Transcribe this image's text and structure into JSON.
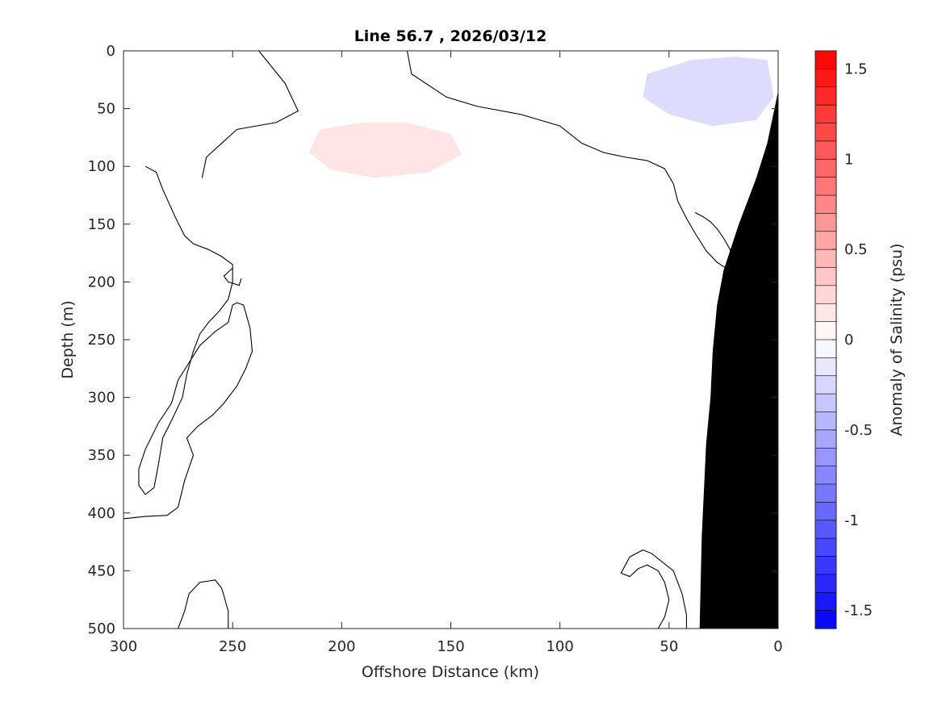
{
  "chart_data": {
    "type": "heatmap",
    "title": "Line 56.7 , 2026/03/12",
    "xlabel": "Offshore Distance (km)",
    "ylabel": "Depth (m)",
    "xlim": [
      300,
      0
    ],
    "ylim": [
      0,
      500
    ],
    "x_reversed": true,
    "y_reversed": true,
    "xticks": [
      300,
      250,
      200,
      150,
      100,
      50,
      0
    ],
    "yticks": [
      0,
      50,
      100,
      150,
      200,
      250,
      300,
      350,
      400,
      450,
      500
    ],
    "colorbar": {
      "label": "Anomaly of Salinity (psu)",
      "range": [
        -1.6,
        1.6
      ],
      "ticks": [
        -1.5,
        -1,
        -0.5,
        0,
        0.5,
        1,
        1.5
      ],
      "tick_labels": [
        "-1.5",
        "-1",
        "-0.5",
        "0",
        "0.5",
        "1",
        "1.5"
      ],
      "low_color": "#0000ff",
      "mid_color": "#ffffff",
      "high_color": "#ff0000"
    },
    "regions": [
      {
        "name": "positive-anomaly-core",
        "value": 0.3,
        "points": [
          [
            210,
            68
          ],
          [
            190,
            62
          ],
          [
            170,
            62
          ],
          [
            150,
            72
          ],
          [
            145,
            90
          ],
          [
            160,
            105
          ],
          [
            185,
            110
          ],
          [
            205,
            103
          ],
          [
            215,
            88
          ]
        ]
      },
      {
        "name": "negative-anomaly-nearshore",
        "value": -0.4,
        "points": [
          [
            60,
            20
          ],
          [
            40,
            8
          ],
          [
            20,
            5
          ],
          [
            5,
            8
          ],
          [
            2,
            40
          ],
          [
            10,
            60
          ],
          [
            30,
            65
          ],
          [
            50,
            55
          ],
          [
            62,
            40
          ]
        ]
      }
    ],
    "zero_contours": [
      {
        "name": "zero-contour-main",
        "points": [
          [
            300,
            405
          ],
          [
            290,
            403
          ],
          [
            280,
            402
          ],
          [
            275,
            395
          ],
          [
            272,
            372
          ],
          [
            268,
            350
          ],
          [
            271,
            335
          ],
          [
            266,
            325
          ],
          [
            259,
            315
          ],
          [
            254,
            305
          ],
          [
            248,
            290
          ],
          [
            244,
            275
          ],
          [
            241,
            260
          ],
          [
            242,
            240
          ],
          [
            245,
            220
          ],
          [
            248,
            218
          ],
          [
            250,
            220
          ],
          [
            252,
            235
          ],
          [
            258,
            243
          ],
          [
            265,
            255
          ],
          [
            270,
            270
          ],
          [
            275,
            285
          ],
          [
            278,
            305
          ],
          [
            284,
            322
          ],
          [
            290,
            345
          ],
          [
            293,
            362
          ],
          [
            293,
            376
          ],
          [
            290,
            384
          ],
          [
            286,
            378
          ],
          [
            284,
            358
          ],
          [
            282,
            335
          ],
          [
            278,
            320
          ],
          [
            273,
            300
          ],
          [
            271,
            280
          ],
          [
            268,
            260
          ],
          [
            265,
            245
          ],
          [
            261,
            235
          ],
          [
            256,
            225
          ],
          [
            252,
            215
          ],
          [
            250,
            200
          ],
          [
            250,
            185
          ],
          [
            255,
            178
          ],
          [
            261,
            172
          ],
          [
            268,
            167
          ],
          [
            272,
            160
          ],
          [
            276,
            145
          ],
          [
            282,
            120
          ],
          [
            285,
            105
          ],
          [
            290,
            100
          ]
        ]
      },
      {
        "name": "zero-contour-upper",
        "points": [
          [
            238,
            0
          ],
          [
            226,
            28
          ],
          [
            220,
            52
          ],
          [
            230,
            62
          ],
          [
            248,
            68
          ],
          [
            255,
            80
          ],
          [
            262,
            92
          ],
          [
            264,
            110
          ]
        ]
      },
      {
        "name": "zero-contour-shelf",
        "points": [
          [
            170,
            0
          ],
          [
            168,
            20
          ],
          [
            152,
            40
          ],
          [
            138,
            48
          ],
          [
            118,
            55
          ],
          [
            100,
            65
          ],
          [
            90,
            80
          ],
          [
            80,
            88
          ],
          [
            70,
            92
          ],
          [
            60,
            95
          ],
          [
            52,
            102
          ],
          [
            48,
            115
          ],
          [
            46,
            130
          ],
          [
            42,
            145
          ],
          [
            38,
            158
          ],
          [
            33,
            173
          ],
          [
            28,
            183
          ],
          [
            24,
            188
          ],
          [
            22,
            182
          ],
          [
            22,
            172
          ],
          [
            25,
            162
          ],
          [
            28,
            154
          ],
          [
            31,
            148
          ],
          [
            34,
            144
          ],
          [
            38,
            140
          ]
        ]
      },
      {
        "name": "zero-contour-islet",
        "points": [
          [
            250,
            188
          ],
          [
            254,
            195
          ],
          [
            252,
            200
          ],
          [
            247,
            203
          ],
          [
            246,
            197
          ]
        ]
      },
      {
        "name": "zero-contour-deep-west",
        "points": [
          [
            252,
            500
          ],
          [
            252,
            485
          ],
          [
            255,
            465
          ],
          [
            258,
            458
          ],
          [
            265,
            460
          ],
          [
            270,
            470
          ],
          [
            272,
            485
          ],
          [
            275,
            500
          ]
        ]
      },
      {
        "name": "zero-contour-deep-east",
        "points": [
          [
            42,
            500
          ],
          [
            42,
            488
          ],
          [
            44,
            470
          ],
          [
            48,
            450
          ],
          [
            58,
            435
          ],
          [
            62,
            432
          ],
          [
            68,
            438
          ],
          [
            72,
            452
          ],
          [
            68,
            455
          ],
          [
            64,
            448
          ],
          [
            60,
            445
          ],
          [
            55,
            450
          ],
          [
            52,
            460
          ],
          [
            50,
            475
          ],
          [
            52,
            490
          ],
          [
            55,
            500
          ]
        ]
      }
    ],
    "bathymetry": {
      "name": "seafloor",
      "color": "#000000",
      "profile": [
        [
          0,
          35
        ],
        [
          5,
          80
        ],
        [
          10,
          110
        ],
        [
          18,
          150
        ],
        [
          25,
          190
        ],
        [
          28,
          220
        ],
        [
          30,
          260
        ],
        [
          31,
          300
        ],
        [
          33,
          340
        ],
        [
          34,
          380
        ],
        [
          35,
          420
        ],
        [
          35.5,
          460
        ],
        [
          36,
          500
        ]
      ]
    }
  }
}
